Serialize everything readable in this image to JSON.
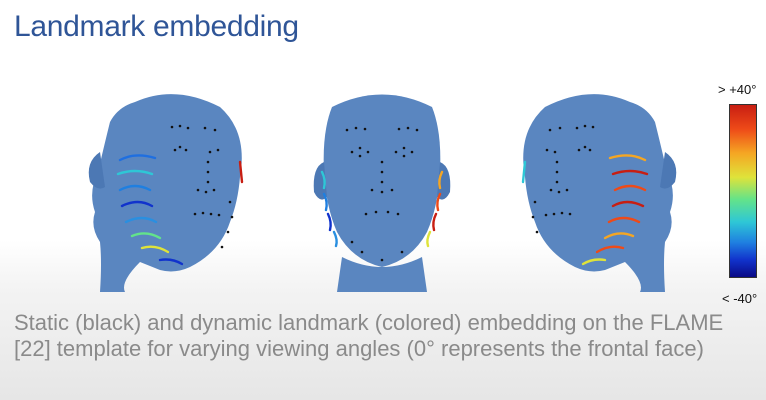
{
  "slide": {
    "title": "Landmark embedding",
    "caption": "Static (black) and dynamic landmark (colored) embedding on the FLAME [22] template for varying viewing angles (0° represents the frontal face)"
  },
  "colorbar": {
    "max_label": "> +40°",
    "min_label": "< -40°",
    "colors": [
      "#c81e12",
      "#f5a623",
      "#dfe33a",
      "#63e38a",
      "#2ec7d6",
      "#1f7fe0",
      "#0a0a86"
    ]
  },
  "faces": [
    {
      "view": "left-turned",
      "icon": "head-mesh-left"
    },
    {
      "view": "frontal",
      "icon": "head-mesh-front"
    },
    {
      "view": "right-turned",
      "icon": "head-mesh-right"
    }
  ],
  "colors": {
    "title": "#2f5597",
    "mesh": "#5a86c0",
    "caption": "#8a8a8a"
  }
}
